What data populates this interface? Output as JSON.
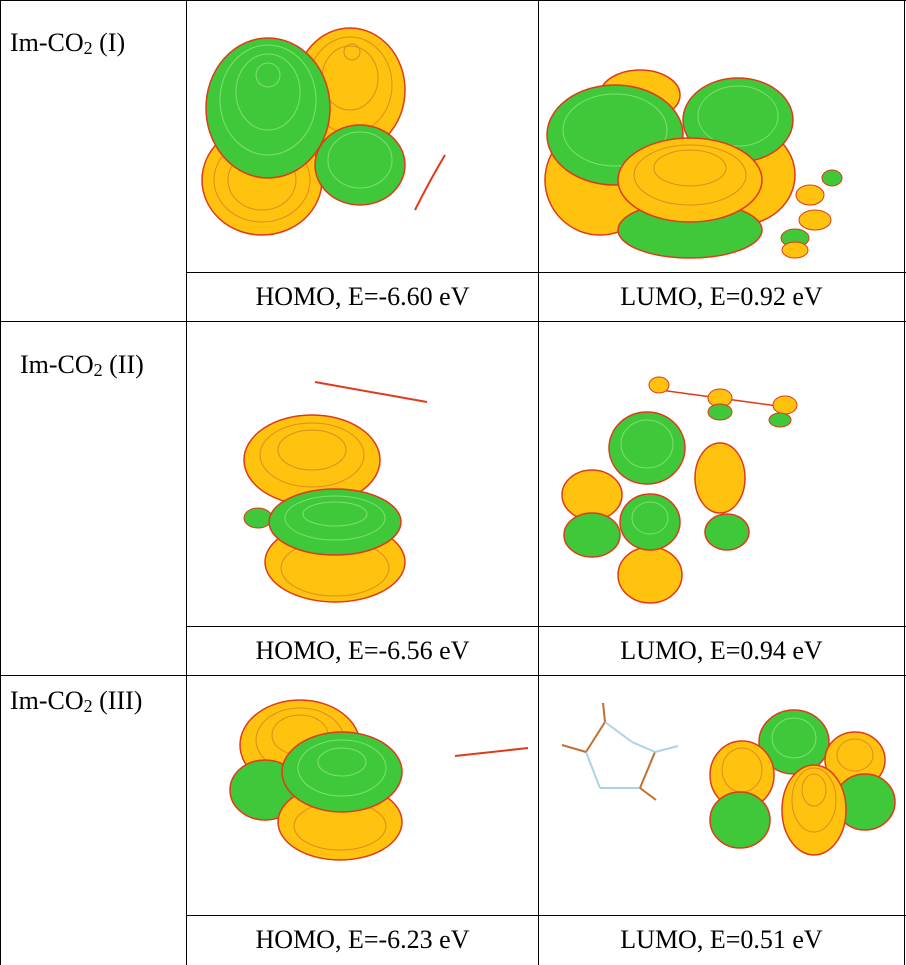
{
  "rows": [
    {
      "label_main": "Im-CO",
      "label_sub": "2",
      "label_tail": " (I)",
      "homo": "HOMO, E=-6.60 eV",
      "lumo": "LUMO, E=0.92 eV"
    },
    {
      "label_main": "Im-CO",
      "label_sub": "2",
      "label_tail": " (II)",
      "homo": "HOMO, E=-6.56 eV",
      "lumo": "LUMO, E=0.94 eV"
    },
    {
      "label_main": "Im-CO",
      "label_sub": "2",
      "label_tail": " (III)",
      "homo": "HOMO, E=-6.23 eV",
      "lumo": "LUMO, E=0.51 eV"
    }
  ],
  "colors": {
    "positive_lobe": "#ffc20e",
    "negative_lobe": "#3ec83a",
    "contour": "#e03a1a",
    "bond_n": "#a8d4e8",
    "bond_c": "#c07030"
  }
}
